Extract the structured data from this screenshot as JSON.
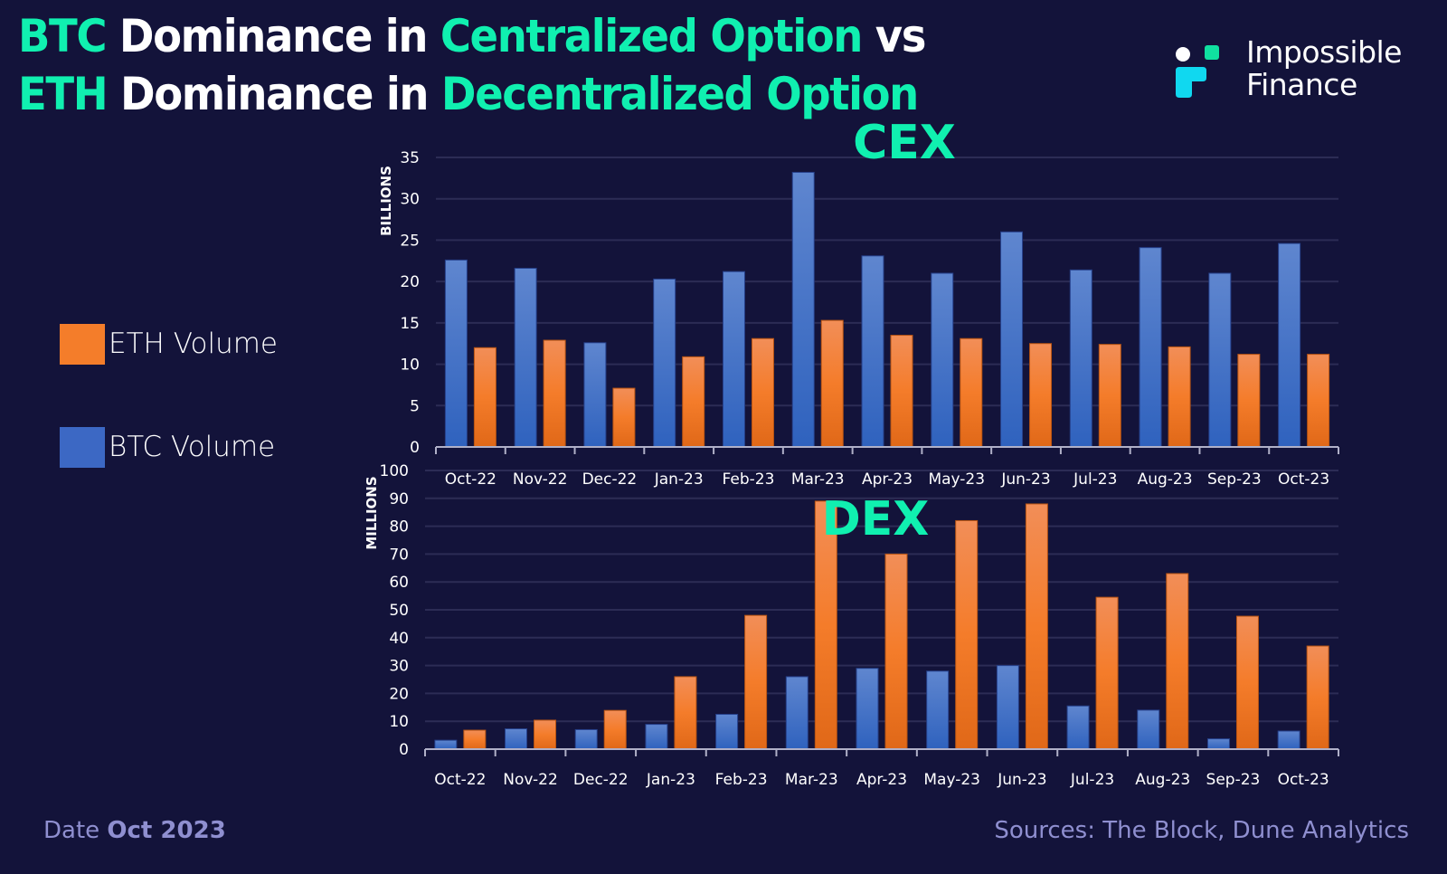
{
  "title": {
    "line1": [
      {
        "text": "BTC",
        "highlight": true
      },
      {
        "text": " Dominance in ",
        "highlight": false
      },
      {
        "text": "Centralized Option",
        "highlight": true
      },
      {
        "text": " vs",
        "highlight": false
      }
    ],
    "line2": [
      {
        "text": "ETH",
        "highlight": true
      },
      {
        "text": " Dominance in ",
        "highlight": false
      },
      {
        "text": "Decentralized Option",
        "highlight": true
      }
    ]
  },
  "brand": {
    "line1": "Impossible",
    "line2": "Finance"
  },
  "colors": {
    "background": "#13133a",
    "highlight": "#10f0b0",
    "eth": "#f07a28",
    "btc": "#3d6cc8",
    "footer": "#8f8fd0",
    "gridline": "#2c2c55"
  },
  "legend": [
    {
      "label": "ETH Volume",
      "series": "eth"
    },
    {
      "label": "BTC Volume",
      "series": "btc"
    }
  ],
  "footer": {
    "date_prefix": "Date ",
    "date_value": "Oct 2023",
    "sources": "Sources: The Block, Dune Analytics"
  },
  "chart_data": [
    {
      "type": "bar",
      "title": "CEX",
      "xlabel": "",
      "ylabel": "BILLIONS",
      "ylim": [
        0,
        35
      ],
      "yticks": [
        0,
        5,
        10,
        15,
        20,
        25,
        30,
        35
      ],
      "grid": true,
      "legend_position": "left",
      "categories": [
        "Oct-22",
        "Nov-22",
        "Dec-22",
        "Jan-23",
        "Feb-23",
        "Mar-23",
        "Apr-23",
        "May-23",
        "Jun-23",
        "Jul-23",
        "Aug-23",
        "Sep-23",
        "Oct-23"
      ],
      "series": [
        {
          "name": "BTC Volume",
          "key": "btc",
          "values": [
            22.6,
            21.6,
            12.6,
            20.3,
            21.2,
            33.2,
            23.1,
            21.0,
            26.0,
            21.4,
            24.1,
            21.0,
            24.6
          ]
        },
        {
          "name": "ETH Volume",
          "key": "eth",
          "values": [
            12.0,
            12.9,
            7.1,
            10.9,
            13.1,
            15.3,
            13.5,
            13.1,
            12.5,
            12.4,
            12.1,
            11.2,
            11.2
          ]
        }
      ]
    },
    {
      "type": "bar",
      "title": "DEX",
      "xlabel": "",
      "ylabel": "MILLIONS",
      "ylim": [
        0,
        100
      ],
      "yticks": [
        0,
        10,
        20,
        30,
        40,
        50,
        60,
        70,
        80,
        90,
        100
      ],
      "grid": true,
      "legend_position": "left",
      "categories": [
        "Oct-22",
        "Nov-22",
        "Dec-22",
        "Jan-23",
        "Feb-23",
        "Mar-23",
        "Apr-23",
        "May-23",
        "Jun-23",
        "Jul-23",
        "Aug-23",
        "Sep-23",
        "Oct-23"
      ],
      "series": [
        {
          "name": "BTC Volume",
          "key": "btc",
          "values": [
            3.2,
            7.3,
            7.0,
            8.9,
            12.5,
            26.0,
            29.0,
            28.0,
            30.0,
            15.5,
            14.0,
            3.7,
            6.5
          ]
        },
        {
          "name": "ETH Volume",
          "key": "eth",
          "values": [
            6.8,
            10.4,
            13.9,
            26.0,
            48.0,
            89.0,
            70.0,
            82.0,
            88.0,
            54.5,
            63.0,
            47.7,
            37.0
          ]
        }
      ]
    }
  ]
}
